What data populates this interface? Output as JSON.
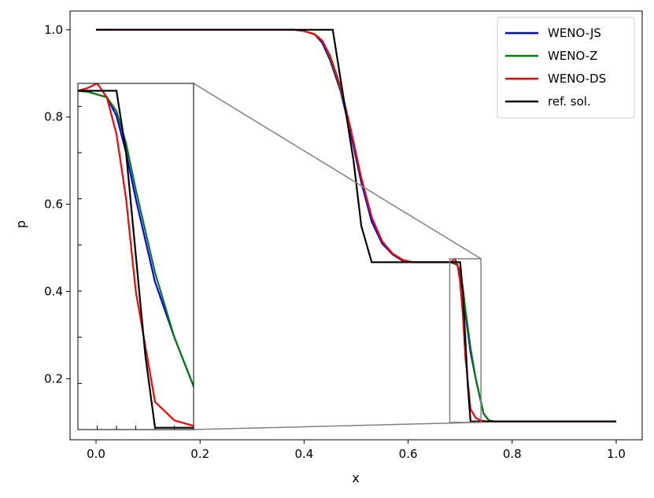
{
  "chart_data": {
    "type": "line",
    "xlabel": "x",
    "ylabel": "p",
    "xlim": [
      -0.05,
      1.05
    ],
    "ylim": [
      0.06,
      1.043
    ],
    "x_ticks": [
      "0.0",
      "0.2",
      "0.4",
      "0.6",
      "0.8",
      "1.0"
    ],
    "y_ticks": [
      "0.2",
      "0.4",
      "0.6",
      "0.8",
      "1.0"
    ],
    "legend_position": "top-right",
    "series": [
      {
        "name": "WENO-JS",
        "color": "#0000ff",
        "x": [
          0.0,
          0.38,
          0.4,
          0.42,
          0.435,
          0.45,
          0.47,
          0.49,
          0.51,
          0.53,
          0.55,
          0.57,
          0.59,
          0.61,
          0.64,
          0.66,
          0.68,
          0.685,
          0.695,
          0.7,
          0.705,
          0.71,
          0.72,
          0.73,
          0.745,
          0.755,
          0.765,
          1.0
        ],
        "y": [
          1.0,
          1.0,
          0.997,
          0.99,
          0.97,
          0.93,
          0.86,
          0.76,
          0.65,
          0.56,
          0.51,
          0.485,
          0.47,
          0.467,
          0.467,
          0.467,
          0.467,
          0.466,
          0.46,
          0.44,
          0.4,
          0.35,
          0.26,
          0.2,
          0.12,
          0.105,
          0.102,
          0.102
        ]
      },
      {
        "name": "WENO-Z",
        "color": "#008000",
        "x": [
          0.0,
          0.38,
          0.4,
          0.42,
          0.435,
          0.45,
          0.47,
          0.49,
          0.51,
          0.53,
          0.55,
          0.57,
          0.59,
          0.61,
          0.64,
          0.66,
          0.68,
          0.685,
          0.695,
          0.7,
          0.705,
          0.71,
          0.72,
          0.73,
          0.745,
          0.755,
          0.765,
          1.0
        ],
        "y": [
          1.0,
          1.0,
          0.997,
          0.99,
          0.975,
          0.935,
          0.865,
          0.77,
          0.66,
          0.57,
          0.515,
          0.487,
          0.472,
          0.467,
          0.467,
          0.467,
          0.467,
          0.466,
          0.46,
          0.445,
          0.41,
          0.36,
          0.27,
          0.2,
          0.12,
          0.105,
          0.102,
          0.102
        ]
      },
      {
        "name": "WENO-DS",
        "color": "#ff0000",
        "x": [
          0.0,
          0.38,
          0.4,
          0.42,
          0.435,
          0.45,
          0.47,
          0.49,
          0.51,
          0.53,
          0.55,
          0.57,
          0.59,
          0.61,
          0.64,
          0.66,
          0.68,
          0.685,
          0.69,
          0.695,
          0.7,
          0.705,
          0.71,
          0.72,
          0.73,
          0.74,
          0.75,
          1.0
        ],
        "y": [
          1.0,
          1.0,
          0.997,
          0.99,
          0.975,
          0.94,
          0.87,
          0.77,
          0.66,
          0.57,
          0.515,
          0.487,
          0.472,
          0.467,
          0.467,
          0.467,
          0.467,
          0.47,
          0.475,
          0.46,
          0.42,
          0.35,
          0.25,
          0.13,
          0.11,
          0.104,
          0.102,
          0.102
        ]
      },
      {
        "name": "ref. sol.",
        "color": "#000000",
        "x": [
          0.0,
          0.455,
          0.475,
          0.495,
          0.51,
          0.53,
          0.7,
          0.705,
          0.715,
          0.72,
          1.0
        ],
        "y": [
          1.0,
          1.0,
          0.85,
          0.7,
          0.55,
          0.467,
          0.467,
          0.4,
          0.18,
          0.102,
          0.102
        ]
      }
    ],
    "inset": {
      "xlim": [
        0.68,
        0.74
      ],
      "ylim": [
        0.1,
        0.475
      ]
    }
  }
}
